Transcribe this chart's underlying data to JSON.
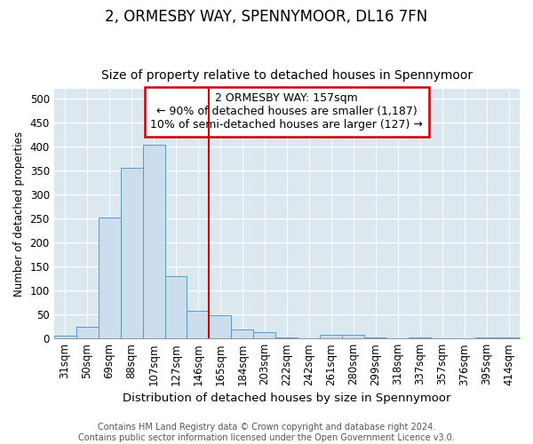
{
  "title": "2, ORMESBY WAY, SPENNYMOOR, DL16 7FN",
  "subtitle": "Size of property relative to detached houses in Spennymoor",
  "xlabel": "Distribution of detached houses by size in Spennymoor",
  "ylabel": "Number of detached properties",
  "categories": [
    "31sqm",
    "50sqm",
    "69sqm",
    "88sqm",
    "107sqm",
    "127sqm",
    "146sqm",
    "165sqm",
    "184sqm",
    "203sqm",
    "222sqm",
    "242sqm",
    "261sqm",
    "280sqm",
    "299sqm",
    "318sqm",
    "337sqm",
    "357sqm",
    "376sqm",
    "395sqm",
    "414sqm"
  ],
  "values": [
    6,
    25,
    252,
    355,
    403,
    130,
    57,
    49,
    19,
    14,
    2,
    0,
    7,
    7,
    2,
    0,
    3,
    0,
    0,
    3,
    3
  ],
  "bar_color": "#ccdded",
  "bar_edge_color": "#5599cc",
  "vline_x_index": 6.5,
  "vline_color": "#cc0000",
  "annotation_box_text": "2 ORMESBY WAY: 157sqm\n← 90% of detached houses are smaller (1,187)\n10% of semi-detached houses are larger (127) →",
  "annotation_box_color": "#cc0000",
  "ylim": [
    0,
    520
  ],
  "yticks": [
    0,
    50,
    100,
    150,
    200,
    250,
    300,
    350,
    400,
    450,
    500
  ],
  "plot_bg_color": "#dce8f0",
  "footer_line1": "Contains HM Land Registry data © Crown copyright and database right 2024.",
  "footer_line2": "Contains public sector information licensed under the Open Government Licence v3.0.",
  "title_fontsize": 12,
  "subtitle_fontsize": 10,
  "xlabel_fontsize": 9.5,
  "ylabel_fontsize": 8.5,
  "tick_fontsize": 8.5,
  "annotation_fontsize": 9,
  "footer_fontsize": 7
}
